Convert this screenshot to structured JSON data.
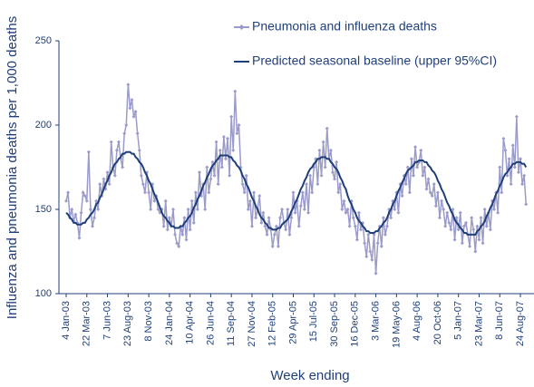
{
  "chart_data": {
    "type": "line",
    "ylabel": "Influenza and pneumonia deaths per 1,000 deaths",
    "xlabel": "Week ending",
    "ylim": [
      100,
      250
    ],
    "yticks": [
      100,
      150,
      200,
      250
    ],
    "categories": [
      "4 Jan-03",
      null,
      null,
      null,
      null,
      null,
      null,
      null,
      null,
      null,
      null,
      "22 Mar-03",
      null,
      null,
      null,
      null,
      null,
      null,
      null,
      null,
      null,
      null,
      "7 Jun-03",
      null,
      null,
      null,
      null,
      null,
      null,
      null,
      null,
      null,
      null,
      "23 Aug-03",
      null,
      null,
      null,
      null,
      null,
      null,
      null,
      null,
      null,
      null,
      "8 Nov-03",
      null,
      null,
      null,
      null,
      null,
      null,
      null,
      null,
      null,
      null,
      "24 Jan-04",
      null,
      null,
      null,
      null,
      null,
      null,
      null,
      null,
      null,
      null,
      "10 Apr-04",
      null,
      null,
      null,
      null,
      null,
      null,
      null,
      null,
      null,
      null,
      "26 Jun-04",
      null,
      null,
      null,
      null,
      null,
      null,
      null,
      null,
      null,
      null,
      "11 Sep-04",
      null,
      null,
      null,
      null,
      null,
      null,
      null,
      null,
      null,
      null,
      "27 Nov-04",
      null,
      null,
      null,
      null,
      null,
      null,
      null,
      null,
      null,
      null,
      "12 Feb-05",
      null,
      null,
      null,
      null,
      null,
      null,
      null,
      null,
      null,
      null,
      "29 Apr-05",
      null,
      null,
      null,
      null,
      null,
      null,
      null,
      null,
      null,
      null,
      "15 Jul-05",
      null,
      null,
      null,
      null,
      null,
      null,
      null,
      null,
      null,
      null,
      "30 Sep-05",
      null,
      null,
      null,
      null,
      null,
      null,
      null,
      null,
      null,
      null,
      "16 Dec-05",
      null,
      null,
      null,
      null,
      null,
      null,
      null,
      null,
      null,
      null,
      "3 Mar-06",
      null,
      null,
      null,
      null,
      null,
      null,
      null,
      null,
      null,
      null,
      "19 May-06",
      null,
      null,
      null,
      null,
      null,
      null,
      null,
      null,
      null,
      null,
      "4 Aug-06",
      null,
      null,
      null,
      null,
      null,
      null,
      null,
      null,
      null,
      null,
      "20 Oct-06",
      null,
      null,
      null,
      null,
      null,
      null,
      null,
      null,
      null,
      null,
      "5 Jan-07",
      null,
      null,
      null,
      null,
      null,
      null,
      null,
      null,
      null,
      null,
      "23 Mar-07",
      null,
      null,
      null,
      null,
      null,
      null,
      null,
      null,
      null,
      null,
      "8 Jun-07",
      null,
      null,
      null,
      null,
      null,
      null,
      null,
      null,
      null,
      null,
      "24 Aug-07",
      null,
      null,
      null
    ],
    "series": [
      {
        "name": "Pneumonia and influenza deaths",
        "color": "#9a9acb",
        "marker": "diamond",
        "values": [
          155,
          160,
          145,
          150,
          143,
          147,
          142,
          133,
          148,
          160,
          158,
          155,
          184,
          150,
          140,
          145,
          155,
          150,
          165,
          158,
          168,
          162,
          172,
          165,
          190,
          175,
          170,
          185,
          190,
          180,
          175,
          195,
          200,
          224,
          210,
          215,
          205,
          208,
          195,
          185,
          170,
          165,
          160,
          172,
          160,
          150,
          165,
          155,
          158,
          150,
          148,
          150,
          140,
          155,
          138,
          145,
          140,
          150,
          135,
          130,
          128,
          140,
          135,
          145,
          132,
          150,
          138,
          155,
          142,
          160,
          150,
          172,
          158,
          165,
          150,
          175,
          160,
          168,
          178,
          170,
          190,
          165,
          185,
          175,
          193,
          180,
          192,
          170,
          205,
          185,
          220,
          195,
          200,
          175,
          165,
          160,
          170,
          150,
          155,
          140,
          160,
          145,
          150,
          158,
          142,
          148,
          140,
          135,
          145,
          138,
          128,
          135,
          140,
          128,
          145,
          150,
          142,
          138,
          150,
          135,
          145,
          160,
          148,
          155,
          140,
          152,
          160,
          150,
          165,
          148,
          170,
          160,
          175,
          180,
          165,
          185,
          170,
          190,
          175,
          198,
          180,
          185,
          172,
          168,
          178,
          160,
          165,
          150,
          155,
          148,
          150,
          140,
          155,
          145,
          140,
          132,
          148,
          138,
          142,
          130,
          122,
          135,
          125,
          120,
          135,
          112,
          130,
          140,
          128,
          145,
          135,
          140,
          150,
          145,
          155,
          150,
          160,
          148,
          165,
          158,
          170,
          165,
          175,
          160,
          180,
          170,
          187,
          175,
          178,
          185,
          170,
          175,
          162,
          168,
          160,
          158,
          165,
          152,
          160,
          145,
          155,
          150,
          140,
          148,
          142,
          138,
          150,
          132,
          145,
          138,
          148,
          130,
          140,
          142,
          135,
          128,
          145,
          138,
          125,
          140,
          132,
          145,
          130,
          150,
          140,
          148,
          138,
          155,
          150,
          160,
          148,
          175,
          160,
          192,
          185,
          170,
          180,
          165,
          188,
          175,
          205,
          172,
          180,
          165,
          170,
          153
        ]
      },
      {
        "name": "Predicted seasonal baseline (upper 95%CI)",
        "color": "#1f3f7a",
        "values": [
          148,
          147,
          145,
          144,
          142,
          142,
          141,
          141,
          141,
          142,
          142,
          144,
          145,
          147,
          148,
          150,
          153,
          154,
          157,
          159,
          162,
          165,
          167,
          170,
          172,
          175,
          177,
          178,
          180,
          181,
          183,
          183,
          184,
          184,
          184,
          183,
          183,
          181,
          180,
          178,
          177,
          175,
          172,
          170,
          167,
          165,
          162,
          159,
          157,
          154,
          151,
          148,
          146,
          145,
          143,
          142,
          140,
          140,
          139,
          139,
          139,
          140,
          140,
          142,
          143,
          145,
          146,
          148,
          151,
          153,
          156,
          158,
          161,
          164,
          166,
          169,
          171,
          174,
          176,
          177,
          179,
          180,
          182,
          182,
          182,
          182,
          182,
          181,
          181,
          179,
          178,
          176,
          175,
          173,
          170,
          168,
          165,
          163,
          160,
          157,
          155,
          152,
          150,
          147,
          145,
          144,
          142,
          141,
          139,
          139,
          138,
          138,
          138,
          139,
          139,
          141,
          142,
          143,
          144,
          146,
          149,
          151,
          154,
          156,
          159,
          162,
          164,
          167,
          169,
          172,
          174,
          175,
          177,
          178,
          180,
          180,
          181,
          181,
          181,
          180,
          180,
          178,
          177,
          175,
          174,
          172,
          169,
          167,
          164,
          162,
          158,
          155,
          153,
          150,
          148,
          145,
          143,
          142,
          140,
          139,
          137,
          137,
          136,
          136,
          136,
          137,
          137,
          139,
          140,
          142,
          143,
          145,
          148,
          150,
          153,
          155,
          158,
          161,
          163,
          166,
          168,
          171,
          173,
          174,
          175,
          176,
          178,
          178,
          179,
          179,
          179,
          178,
          178,
          176,
          175,
          173,
          172,
          170,
          167,
          165,
          162,
          160,
          157,
          154,
          152,
          149,
          147,
          144,
          142,
          141,
          139,
          138,
          136,
          136,
          135,
          135,
          135,
          135,
          135,
          137,
          138,
          140,
          141,
          143,
          146,
          148,
          151,
          153,
          156,
          159,
          161,
          164,
          166,
          169,
          171,
          172,
          174,
          175,
          177,
          177,
          178,
          178,
          178,
          177,
          177,
          175
        ]
      }
    ]
  }
}
